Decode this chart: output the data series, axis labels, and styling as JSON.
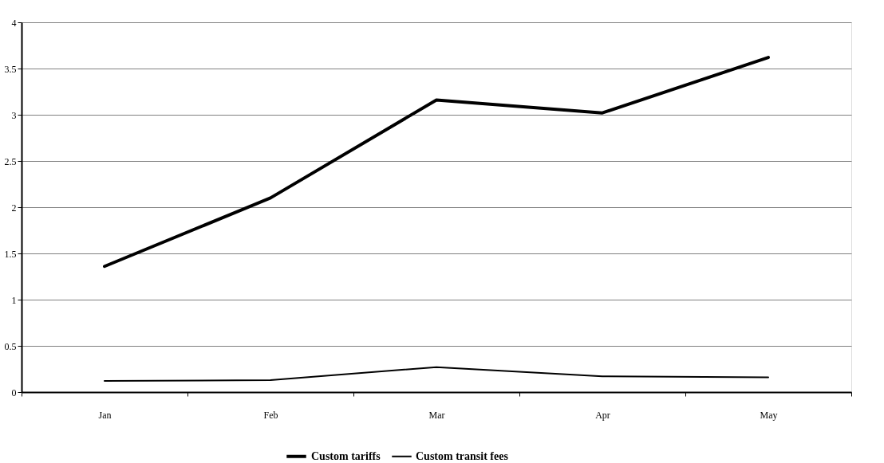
{
  "chart_data": {
    "type": "line",
    "categories": [
      "Jan",
      "Feb",
      "Mar",
      "Apr",
      "May"
    ],
    "series": [
      {
        "name": "Custom tariffs",
        "color": "#000000",
        "values": [
          1.36,
          2.1,
          3.16,
          3.02,
          3.62
        ]
      },
      {
        "name": "Custom transit fees",
        "color": "#000000",
        "values": [
          0.12,
          0.13,
          0.27,
          0.17,
          0.16
        ]
      }
    ],
    "ylim": [
      0,
      4
    ],
    "yticks": [
      0,
      0.5,
      1,
      1.5,
      2,
      2.5,
      3,
      3.5,
      4
    ],
    "grid": "y",
    "legend": "bottom",
    "marker": "none",
    "line_style": "solid"
  }
}
